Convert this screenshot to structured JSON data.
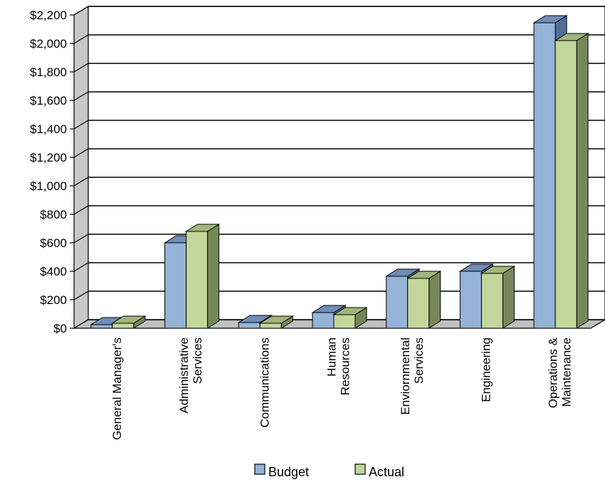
{
  "chart_data": {
    "type": "bar",
    "categories": [
      [
        "General Manager's"
      ],
      [
        "Administrative",
        "Services"
      ],
      [
        "Communications"
      ],
      [
        "Human",
        "Resources"
      ],
      [
        "Enviornmental",
        "Services"
      ],
      [
        "Engineering"
      ],
      [
        "Operations &",
        "Maintenance"
      ]
    ],
    "series": [
      {
        "name": "Budget",
        "values": [
          25,
          600,
          40,
          110,
          365,
          400,
          2145
        ]
      },
      {
        "name": "Actual",
        "values": [
          35,
          680,
          35,
          95,
          350,
          385,
          2020
        ]
      }
    ],
    "ylim": [
      0,
      2200
    ],
    "yticks": [
      "$0",
      "$200",
      "$400",
      "$600",
      "$800",
      "$1,000",
      "$1,200",
      "$1,400",
      "$1,600",
      "$1,800",
      "$2,000",
      "$2,200"
    ],
    "ytick_values": [
      0,
      200,
      400,
      600,
      800,
      1000,
      1200,
      1400,
      1600,
      1800,
      2000,
      2200
    ],
    "grid": true,
    "three_d": true,
    "legend_position": "bottom",
    "colors": {
      "Budget": {
        "front": "#95b3d7",
        "top": "#6f8db6",
        "side": "#4f6f98"
      },
      "Actual": {
        "front": "#c3d69b",
        "top": "#a2b57b",
        "side": "#76885a"
      },
      "wall": "#c8c8c8",
      "floor": "#bfbfbf"
    }
  }
}
